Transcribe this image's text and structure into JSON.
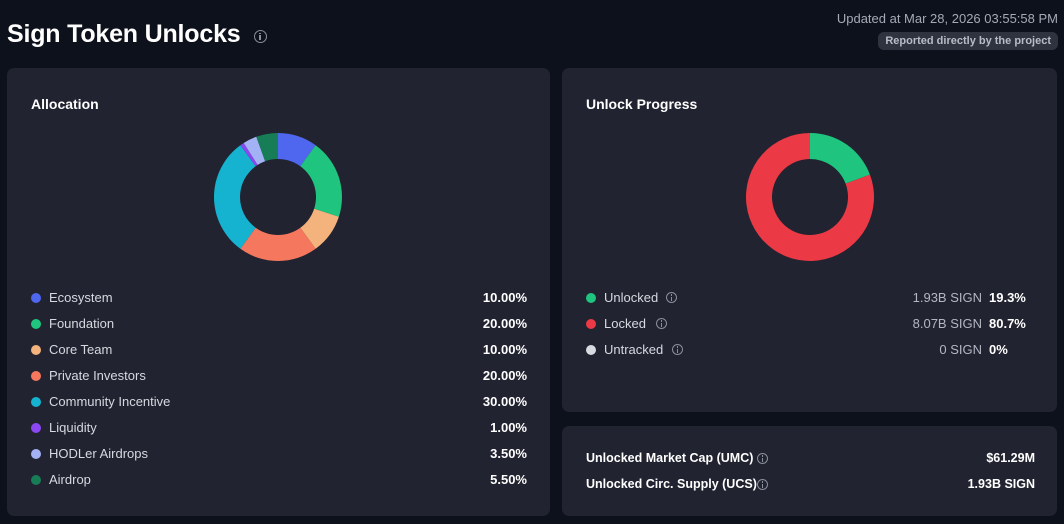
{
  "header": {
    "title": "Sign Token Unlocks",
    "updated": "Updated at Mar 28, 2026 03:55:58 PM",
    "reported": "Reported directly by the project"
  },
  "allocation": {
    "title": "Allocation",
    "items": [
      {
        "label": "Ecosystem",
        "pct": "10.00%",
        "value": 10.0,
        "color": "#4f67ee"
      },
      {
        "label": "Foundation",
        "pct": "20.00%",
        "value": 20.0,
        "color": "#1fc47f"
      },
      {
        "label": "Core Team",
        "pct": "10.00%",
        "value": 10.0,
        "color": "#f4b27c"
      },
      {
        "label": "Private Investors",
        "pct": "20.00%",
        "value": 20.0,
        "color": "#f5785e"
      },
      {
        "label": "Community Incentive",
        "pct": "30.00%",
        "value": 30.0,
        "color": "#16b3d1"
      },
      {
        "label": "Liquidity",
        "pct": "1.00%",
        "value": 1.0,
        "color": "#8b48f2"
      },
      {
        "label": "HODLer Airdrops",
        "pct": "3.50%",
        "value": 3.5,
        "color": "#a2b2f4"
      },
      {
        "label": "Airdrop",
        "pct": "5.50%",
        "value": 5.5,
        "color": "#177d57"
      }
    ]
  },
  "progress": {
    "title": "Unlock Progress",
    "items": [
      {
        "label": "Unlocked",
        "amount": "1.93B SIGN",
        "pct": "19.3%",
        "value": 19.3,
        "color": "#1fc47f"
      },
      {
        "label": "Locked",
        "amount": "8.07B SIGN",
        "pct": "80.7%",
        "value": 80.7,
        "color": "#eb3a45"
      },
      {
        "label": "Untracked",
        "amount": "0 SIGN",
        "pct": "0%",
        "value": 0,
        "color": "#d8dbe2"
      }
    ]
  },
  "metrics": {
    "umc_label": "Unlocked Market Cap (UMC)",
    "umc_value": "$61.29M",
    "ucs_label": "Unlocked Circ. Supply (UCS)",
    "ucs_value": "1.93B SIGN"
  }
}
